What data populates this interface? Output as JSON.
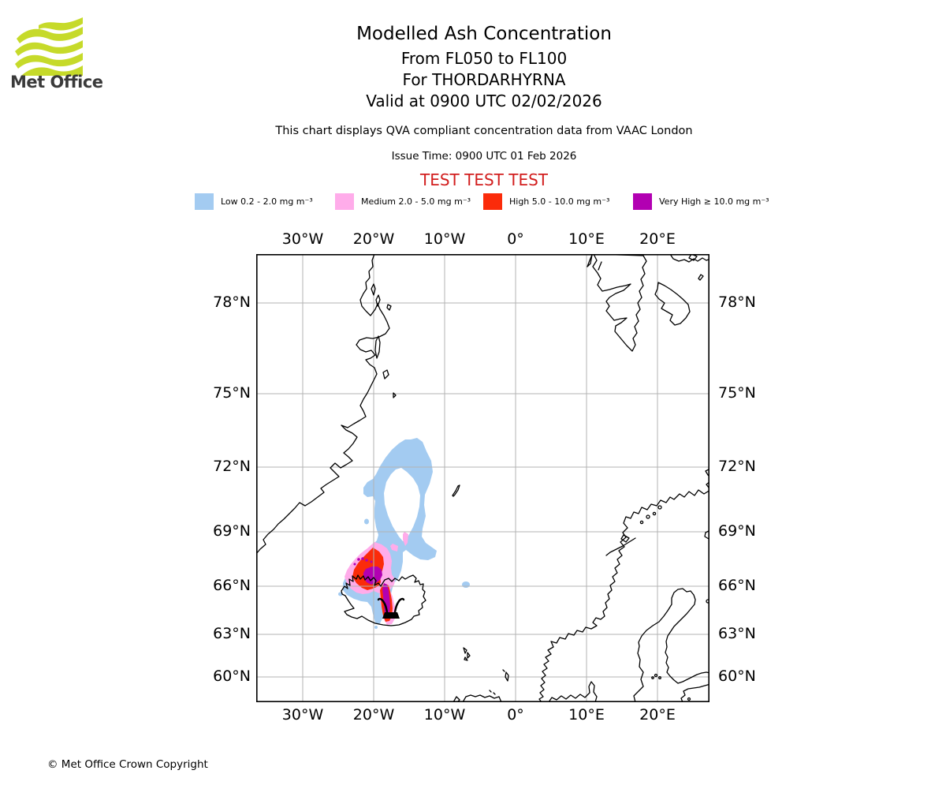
{
  "header": {
    "logo_text": "Met Office",
    "title": "Modelled Ash Concentration",
    "subtitle_lines": [
      "From FL050 to FL100",
      "For THORDARHYRNA",
      "Valid at 0900 UTC 02/02/2026"
    ],
    "description": "This chart displays QVA compliant concentration data from VAAC London",
    "issue_time": "Issue Time: 0900 UTC 01 Feb 2026"
  },
  "legend": {
    "title": "TEST TEST TEST",
    "title_color": "#d21e1e",
    "items": [
      {
        "name": "low",
        "label": "Low 0.2 - 2.0 mg m⁻³",
        "color": "#a3cbf1"
      },
      {
        "name": "medium",
        "label": "Medium 2.0 - 5.0 mg m⁻³",
        "color": "#ffa societal216"
      },
      {
        "name": "high",
        "label": "High 5.0 - 10.0 mg m⁻³",
        "color": "#fb2b0a"
      },
      {
        "name": "very-high",
        "label": "Very High ≥ 10.0 mg m⁻³",
        "color": "#b200b2"
      }
    ]
  },
  "map": {
    "projection": "Mercator",
    "lon_ticks": [
      "30°W",
      "20°W",
      "10°W",
      "0°",
      "10°E",
      "20°E"
    ],
    "lat_ticks": [
      "78°N",
      "75°N",
      "72°N",
      "69°N",
      "66°N",
      "63°N",
      "60°N"
    ],
    "grid_color": "#b3b3b3",
    "coast_color": "#000000",
    "volcano": {
      "name": "THORDARHYRNA"
    }
  },
  "footer": {
    "copyright": "© Met Office Crown Copyright"
  }
}
